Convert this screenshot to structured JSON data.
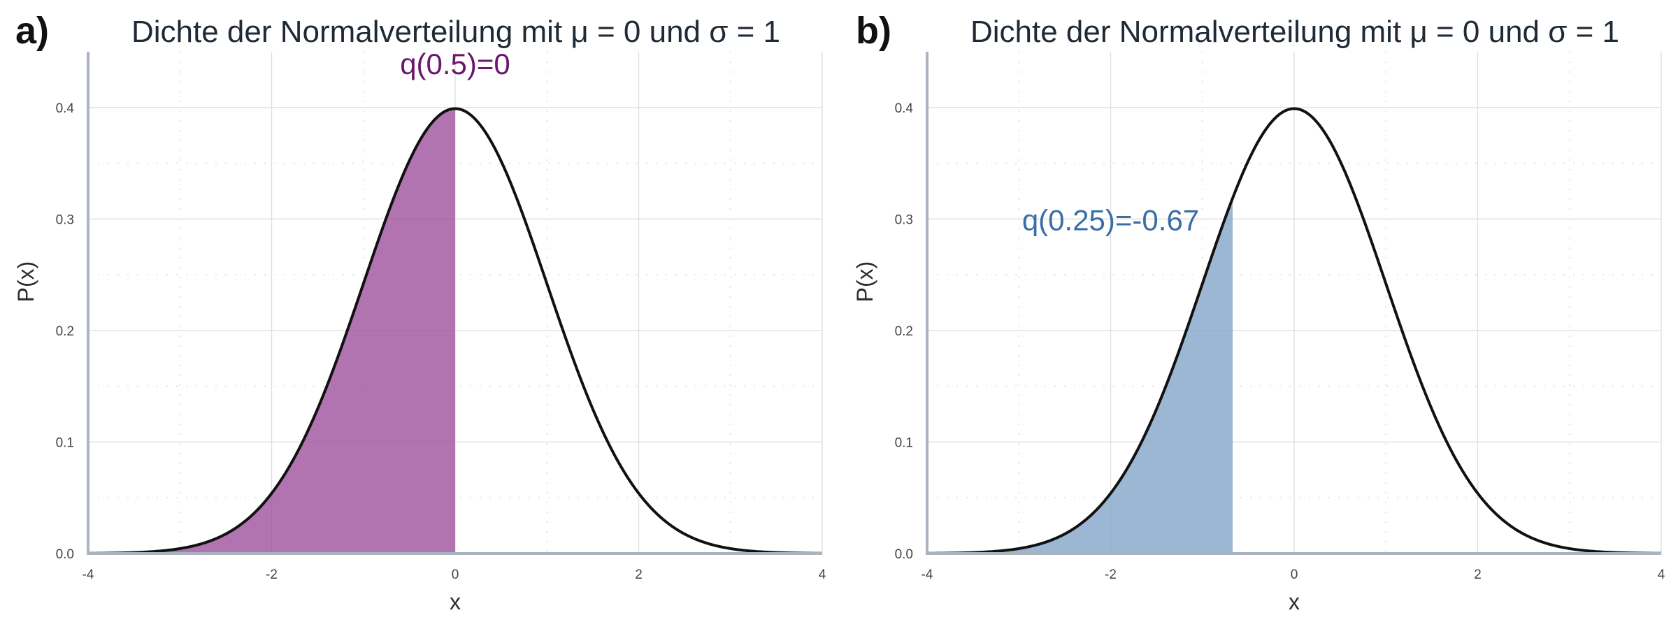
{
  "chart_data": [
    {
      "panel": "a)",
      "type": "area",
      "title": "Dichte der Normalverteilung mit μ = 0 und σ = 1",
      "xlabel": "x",
      "ylabel": "P(x)",
      "xlim": [
        -4,
        4
      ],
      "ylim": [
        0,
        0.45
      ],
      "xticks": [
        -4,
        -2,
        0,
        2,
        4
      ],
      "yticks": [
        0.0,
        0.1,
        0.2,
        0.3,
        0.4
      ],
      "mu": 0,
      "sigma": 1,
      "shaded_from": -4,
      "shaded_to": 0,
      "shade_color": "#a0569f",
      "annotation": {
        "text": "q(0.5)=0",
        "x": 0,
        "y": 0.43,
        "color": "#6a176e"
      },
      "grid": true
    },
    {
      "panel": "b)",
      "type": "area",
      "title": "Dichte der Normalverteilung mit μ = 0 und σ = 1",
      "xlabel": "x",
      "ylabel": "P(x)",
      "xlim": [
        -4,
        4
      ],
      "ylim": [
        0,
        0.45
      ],
      "xticks": [
        -4,
        -2,
        0,
        2,
        4
      ],
      "yticks": [
        0.0,
        0.1,
        0.2,
        0.3,
        0.4
      ],
      "mu": 0,
      "sigma": 1,
      "shaded_from": -4,
      "shaded_to": -0.67,
      "shade_color": "#86a7cb",
      "annotation": {
        "text": "q(0.25)=-0.67",
        "x": -2.0,
        "y": 0.29,
        "color": "#3a6ea5"
      },
      "grid": true
    }
  ]
}
